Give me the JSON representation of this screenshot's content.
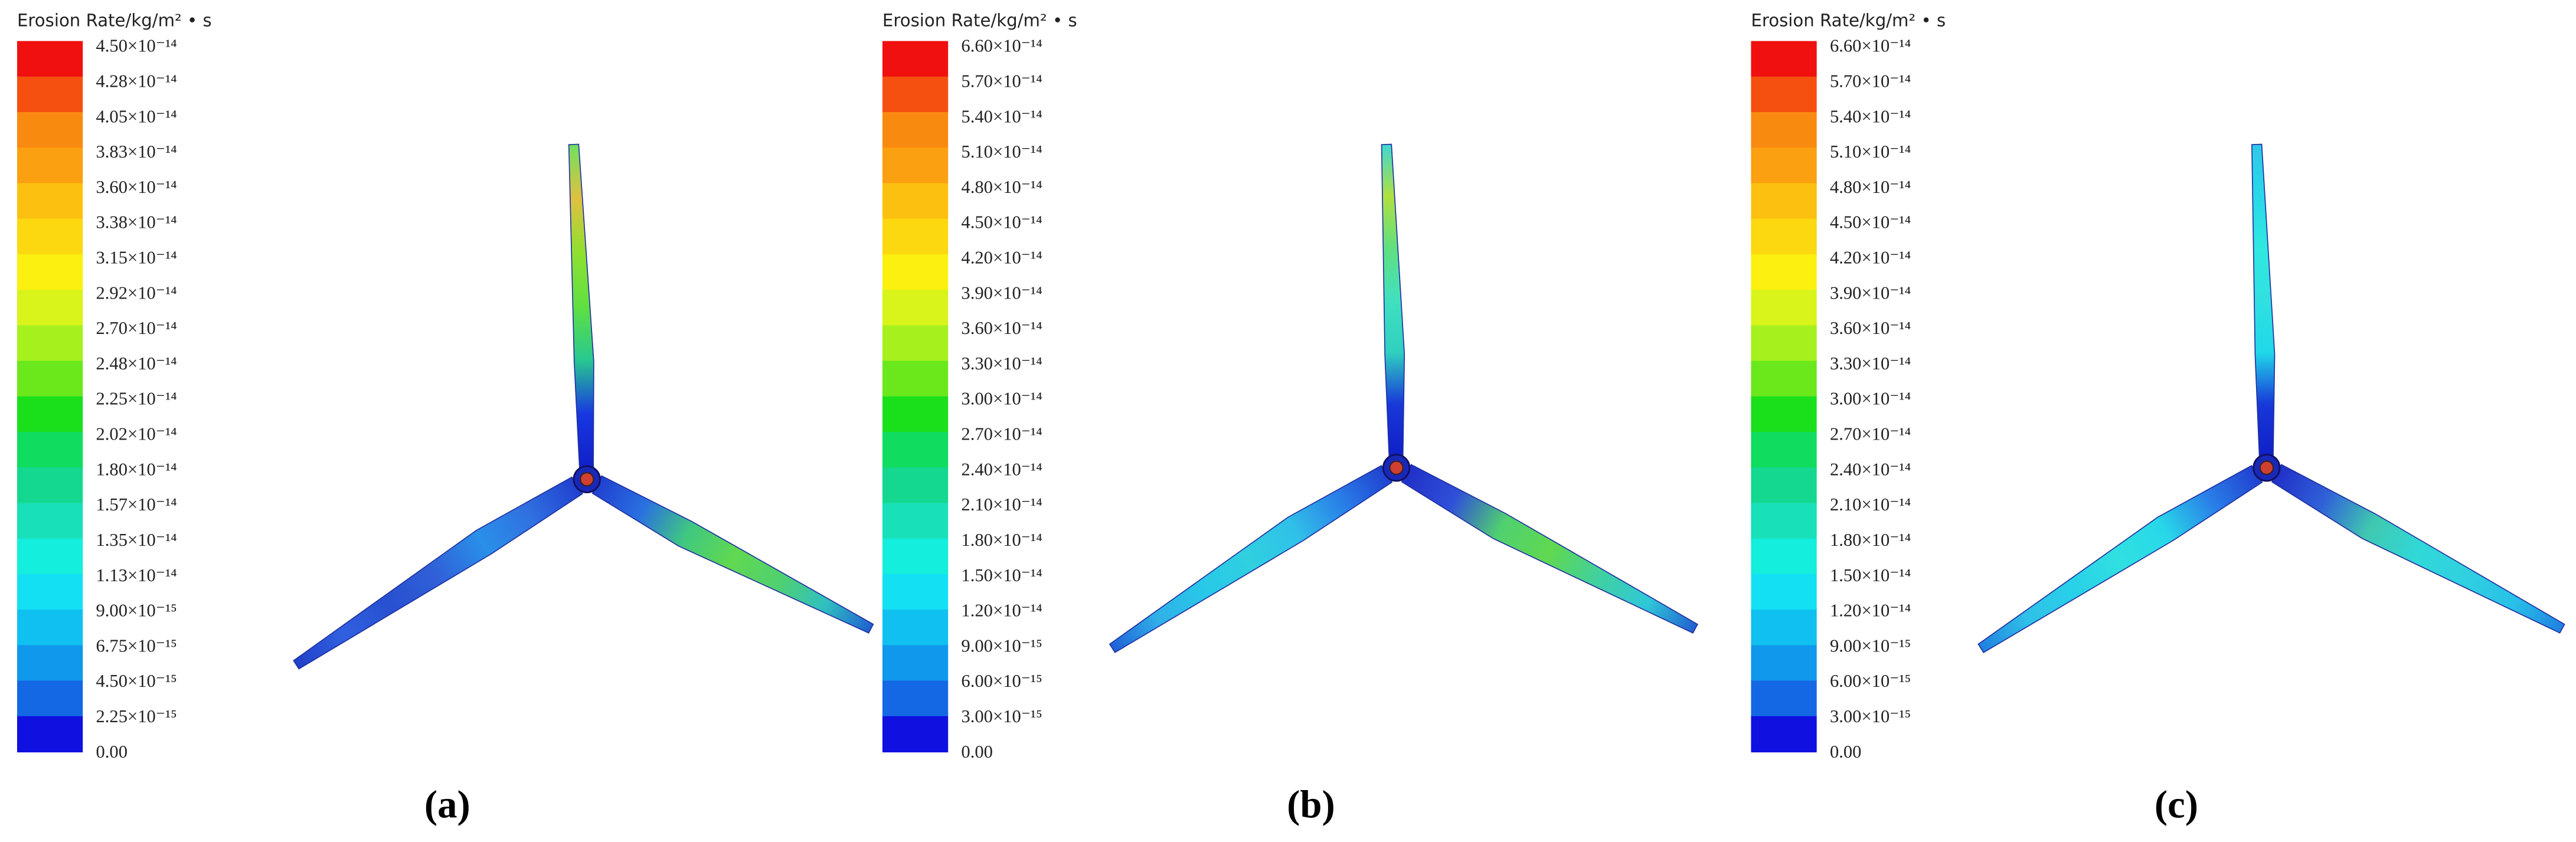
{
  "panels": [
    {
      "legend_title": "Erosion Rate/kg/m² • s",
      "legend_labels": [
        "4.50×10⁻¹⁴",
        "4.28×10⁻¹⁴",
        "4.05×10⁻¹⁴",
        "3.83×10⁻¹⁴",
        "3.60×10⁻¹⁴",
        "3.38×10⁻¹⁴",
        "3.15×10⁻¹⁴",
        "2.92×10⁻¹⁴",
        "2.70×10⁻¹⁴",
        "2.48×10⁻¹⁴",
        "2.25×10⁻¹⁴",
        "2.02×10⁻¹⁴",
        "1.80×10⁻¹⁴",
        "1.57×10⁻¹⁴",
        "1.35×10⁻¹⁴",
        "1.13×10⁻¹⁴",
        "9.00×10⁻¹⁵",
        "6.75×10⁻¹⁵",
        "4.50×10⁻¹⁵",
        "2.25×10⁻¹⁵",
        "0.00"
      ],
      "caption": "(a)"
    },
    {
      "legend_title": "Erosion Rate/kg/m² • s",
      "legend_labels": [
        "6.60×10⁻¹⁴",
        "5.70×10⁻¹⁴",
        "5.40×10⁻¹⁴",
        "5.10×10⁻¹⁴",
        "4.80×10⁻¹⁴",
        "4.50×10⁻¹⁴",
        "4.20×10⁻¹⁴",
        "3.90×10⁻¹⁴",
        "3.60×10⁻¹⁴",
        "3.30×10⁻¹⁴",
        "3.00×10⁻¹⁴",
        "2.70×10⁻¹⁴",
        "2.40×10⁻¹⁴",
        "2.10×10⁻¹⁴",
        "1.80×10⁻¹⁴",
        "1.50×10⁻¹⁴",
        "1.20×10⁻¹⁴",
        "9.00×10⁻¹⁵",
        "6.00×10⁻¹⁵",
        "3.00×10⁻¹⁵",
        "0.00"
      ],
      "caption": "(b)"
    },
    {
      "legend_title": "Erosion Rate/kg/m² • s",
      "legend_labels": [
        "6.60×10⁻¹⁴",
        "5.70×10⁻¹⁴",
        "5.40×10⁻¹⁴",
        "5.10×10⁻¹⁴",
        "4.80×10⁻¹⁴",
        "4.50×10⁻¹⁴",
        "4.20×10⁻¹⁴",
        "3.90×10⁻¹⁴",
        "3.60×10⁻¹⁴",
        "3.30×10⁻¹⁴",
        "3.00×10⁻¹⁴",
        "2.70×10⁻¹⁴",
        "2.40×10⁻¹⁴",
        "2.10×10⁻¹⁴",
        "1.80×10⁻¹⁴",
        "1.50×10⁻¹⁴",
        "1.20×10⁻¹⁴",
        "9.00×10⁻¹⁵",
        "6.00×10⁻¹⁵",
        "3.00×10⁻¹⁵",
        "0.00"
      ],
      "caption": "(c)"
    }
  ]
}
